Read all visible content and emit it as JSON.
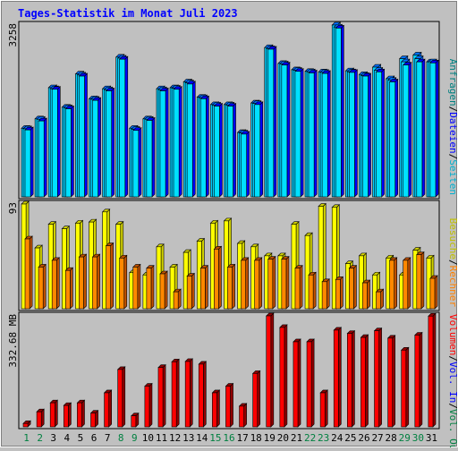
{
  "title": "Tages-Statistik im Monat Juli 2023",
  "colors": {
    "background": "#c0c0c0",
    "title": "#0000ff",
    "frame": "#000000",
    "hits_front": "#00d0ff",
    "hits_side": "#0070ff",
    "files_front": "#00d0ff",
    "files_side": "#0070ff",
    "pages_front": "#00e0ff",
    "pages_side": "#0000ff",
    "visits_front": "#ffff00",
    "visits_side": "#d0d000",
    "sites_front": "#ff8800",
    "sites_side": "#c05000",
    "volume_front": "#ff0000",
    "volume_side": "#900000",
    "weekend_label": "#008040",
    "weekday_label": "#000000"
  },
  "chart_data": [
    {
      "type": "bar",
      "panel": "top",
      "max_label": "3258",
      "ylim": [
        0,
        3258
      ],
      "categories": [
        "1",
        "2",
        "3",
        "4",
        "5",
        "6",
        "7",
        "8",
        "9",
        "10",
        "11",
        "12",
        "13",
        "14",
        "15",
        "16",
        "17",
        "18",
        "19",
        "20",
        "21",
        "22",
        "23",
        "24",
        "25",
        "26",
        "27",
        "28",
        "29",
        "30",
        "31"
      ],
      "legend": [
        {
          "text": "Anfragen",
          "color": "#008080"
        },
        {
          "text": "/",
          "color": "#000000"
        },
        {
          "text": "Dateien",
          "color": "#0000ff"
        },
        {
          "text": "/",
          "color": "#000000"
        },
        {
          "text": "Seiten",
          "color": "#00b0d0"
        }
      ],
      "series": [
        {
          "name": "Anfragen",
          "values": [
            1300,
            1480,
            2070,
            1700,
            2330,
            1860,
            2050,
            2650,
            1300,
            1480,
            2050,
            2070,
            2180,
            1890,
            1750,
            1750,
            1220,
            1780,
            2830,
            2530,
            2410,
            2380,
            2370,
            3258,
            2390,
            2320,
            2460,
            2240,
            2620,
            2690,
            2560
          ]
        },
        {
          "name": "Dateien",
          "values": [
            1290,
            1470,
            2050,
            1690,
            2310,
            1850,
            2030,
            2630,
            1280,
            1470,
            2030,
            2060,
            2160,
            1880,
            1740,
            1740,
            1210,
            1770,
            2810,
            2520,
            2400,
            2370,
            2360,
            3220,
            2370,
            2300,
            2400,
            2210,
            2560,
            2620,
            2560
          ]
        },
        {
          "name": "Seiten",
          "values": [
            1270,
            1440,
            2040,
            1670,
            2290,
            1830,
            2010,
            2610,
            1260,
            1450,
            2010,
            2040,
            2140,
            1860,
            1720,
            1720,
            1190,
            1750,
            2800,
            2500,
            2380,
            2350,
            2340,
            3200,
            2360,
            2290,
            2370,
            2180,
            2500,
            2560,
            2540
          ]
        }
      ]
    },
    {
      "type": "bar",
      "panel": "middle",
      "max_label": "93",
      "ylim": [
        0,
        93
      ],
      "legend": [
        {
          "text": "Besuche",
          "color": "#c0c000"
        },
        {
          "text": "/",
          "color": "#000000"
        },
        {
          "text": "Rechner",
          "color": "#ff8000"
        }
      ],
      "series": [
        {
          "name": "Besuche",
          "values": [
            93,
            54,
            75,
            71,
            76,
            77,
            86,
            75,
            32,
            30,
            55,
            37,
            50,
            60,
            76,
            78,
            58,
            55,
            47,
            47,
            75,
            65,
            91,
            90,
            40,
            47,
            30,
            45,
            30,
            52,
            45
          ]
        },
        {
          "name": "Rechner",
          "values": [
            62,
            37,
            43,
            34,
            46,
            46,
            56,
            45,
            37,
            36,
            31,
            15,
            29,
            36,
            53,
            37,
            43,
            43,
            44,
            44,
            36,
            30,
            24,
            26,
            36,
            23,
            15,
            43,
            43,
            48,
            27
          ]
        }
      ]
    },
    {
      "type": "bar",
      "panel": "bottom",
      "max_label": "332.68 MB",
      "ylim": [
        0,
        332.68
      ],
      "legend": [
        {
          "text": "Volumen",
          "color": "#ff0000"
        },
        {
          "text": "/",
          "color": "#000000"
        },
        {
          "text": "Vol. In",
          "color": "#0000ff"
        },
        {
          "text": "/",
          "color": "#000000"
        },
        {
          "text": "Vol. Out",
          "color": "#008040"
        }
      ],
      "series": [
        {
          "name": "Volumen",
          "values": [
            10,
            45,
            72,
            64,
            72,
            41,
            102,
            172,
            33,
            122,
            178,
            195,
            196,
            188,
            102,
            122,
            62,
            160,
            332.68,
            298,
            255,
            255,
            102,
            290,
            280,
            268,
            288,
            266,
            230,
            275,
            332
          ]
        }
      ]
    }
  ],
  "weekend_days": [
    "1",
    "2",
    "8",
    "9",
    "15",
    "16",
    "22",
    "23",
    "29",
    "30"
  ]
}
